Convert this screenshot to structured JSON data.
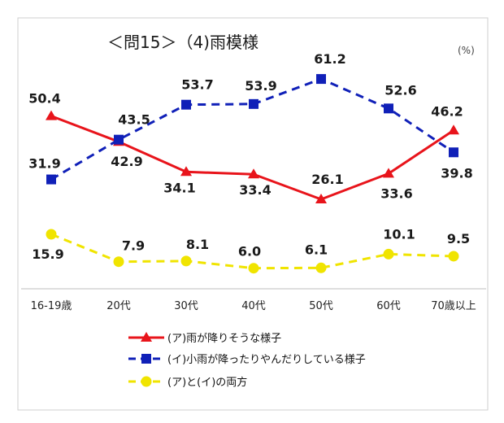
{
  "chart_data": {
    "type": "line",
    "title": "＜問15＞（4)雨模様",
    "unit": "(%)",
    "categories": [
      "16-19歳",
      "20代",
      "30代",
      "40代",
      "50代",
      "60代",
      "70歳以上"
    ],
    "ylim": [
      0,
      70
    ],
    "grid": false,
    "legend_position": "bottom",
    "series": [
      {
        "name": "(ア)雨が降りそうな様子",
        "values": [
          50.4,
          42.9,
          34.1,
          33.4,
          26.1,
          33.6,
          46.2
        ],
        "color": "#e8141b",
        "marker": "triangle",
        "dash": "solid"
      },
      {
        "name": "(イ)小雨が降ったりやんだりしている様子",
        "values": [
          31.9,
          43.5,
          53.7,
          53.9,
          61.2,
          52.6,
          39.8
        ],
        "color": "#1020b8",
        "marker": "square",
        "dash": "dashed"
      },
      {
        "name": "(ア)と(イ)の両方",
        "values": [
          15.9,
          7.9,
          8.1,
          6.0,
          6.1,
          10.1,
          9.5
        ],
        "color": "#f0e400",
        "marker": "circle",
        "dash": "dashed"
      }
    ]
  }
}
